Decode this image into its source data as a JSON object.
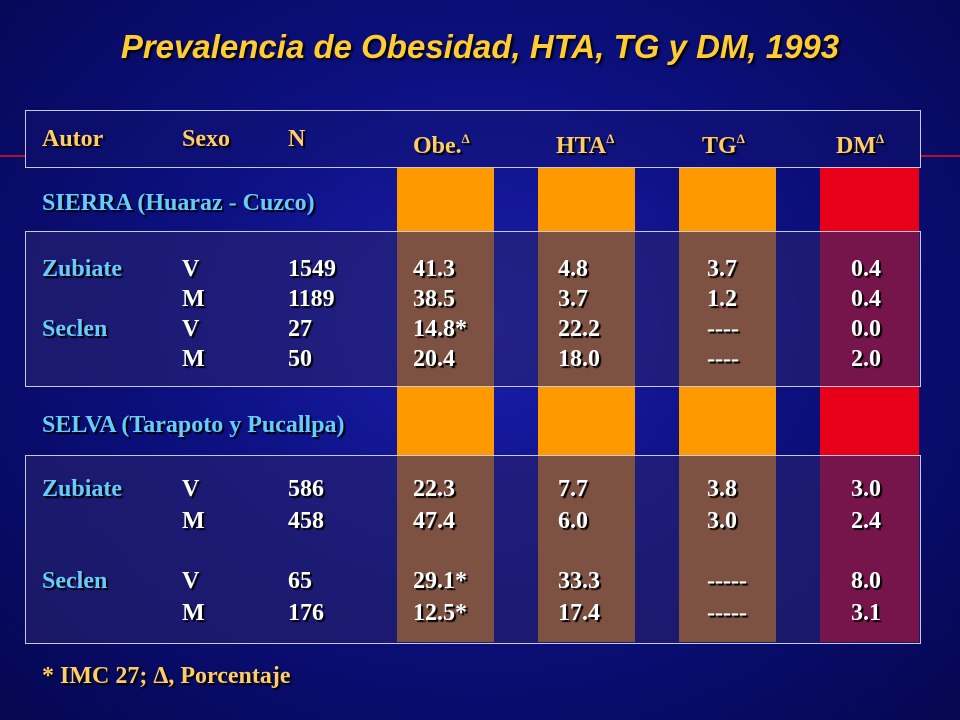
{
  "title": "Prevalencia de Obesidad, HTA, TG y DM, 1993",
  "headers": {
    "autor": "Autor",
    "sexo": "Sexo",
    "n": "N",
    "obe": "Obe.",
    "hta": "HTA",
    "tg": "TG",
    "dm": "DM",
    "delta": "Δ"
  },
  "sections": [
    {
      "label": "SIERRA (Huaraz - Cuzco)",
      "rows": [
        {
          "autor": "Zubiate",
          "sexo": "V",
          "n": "1549",
          "obe": "41.3",
          "hta": "4.8",
          "tg": "3.7",
          "dm": "0.4"
        },
        {
          "autor": "",
          "sexo": "M",
          "n": "1189",
          "obe": "38.5",
          "hta": "3.7",
          "tg": "1.2",
          "dm": "0.4"
        },
        {
          "autor": "Seclen",
          "sexo": "V",
          "n": "27",
          "obe": "14.8*",
          "hta": "22.2",
          "tg": "----",
          "dm": "0.0"
        },
        {
          "autor": "",
          "sexo": "M",
          "n": "50",
          "obe": "20.4",
          "hta": "18.0",
          "tg": "----",
          "dm": "2.0"
        }
      ]
    },
    {
      "label": "SELVA (Tarapoto y Pucallpa)",
      "rows": [
        {
          "autor": "Zubiate",
          "sexo": "V",
          "n": "586",
          "obe": "22.3",
          "hta": "7.7",
          "tg": "3.8",
          "dm": "3.0"
        },
        {
          "autor": "",
          "sexo": "M",
          "n": "458",
          "obe": "47.4",
          "hta": "6.0",
          "tg": "3.0",
          "dm": "2.4"
        },
        {
          "autor": "Seclen",
          "sexo": "V",
          "n": "65",
          "obe": "29.1*",
          "hta": "33.3",
          "tg": "-----",
          "dm": "8.0"
        },
        {
          "autor": "",
          "sexo": "M",
          "n": "176",
          "obe": "12.5*",
          "hta": "17.4",
          "tg": "-----",
          "dm": "3.1"
        }
      ]
    }
  ],
  "footnote": "* IMC 27; Δ, Porcentaje",
  "colors": {
    "title": "#ffcc33",
    "header_text": "#ffcc66",
    "label_text": "#66ccff",
    "column_orange": "#ff9900",
    "column_red": "#e8001a"
  }
}
